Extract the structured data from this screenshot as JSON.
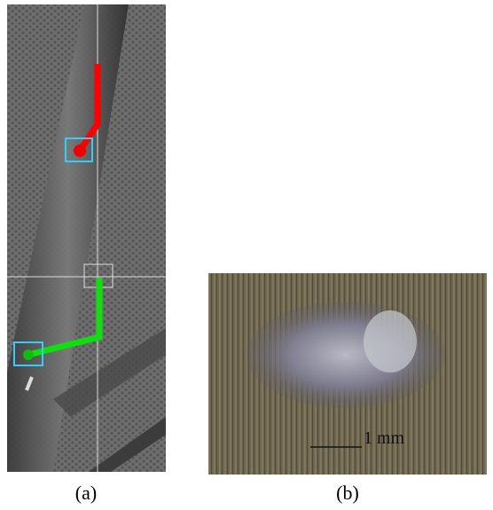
{
  "panels": [
    {
      "label": "(a)"
    },
    {
      "label": "(b)",
      "scale_bar": "1 mm"
    }
  ]
}
